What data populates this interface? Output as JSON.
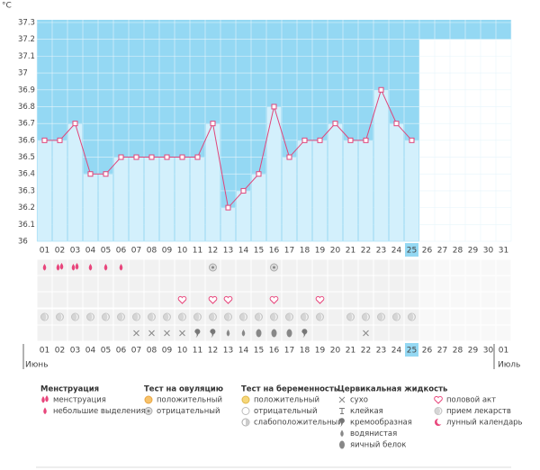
{
  "chart_data": {
    "type": "line",
    "unit": "°C",
    "categories": [
      "01",
      "02",
      "03",
      "04",
      "05",
      "06",
      "07",
      "08",
      "09",
      "10",
      "11",
      "12",
      "13",
      "14",
      "15",
      "16",
      "17",
      "18",
      "19",
      "20",
      "21",
      "22",
      "23",
      "24",
      "25",
      "26",
      "27",
      "28",
      "29",
      "30",
      "31"
    ],
    "values": [
      36.6,
      36.6,
      36.7,
      36.4,
      36.4,
      36.5,
      36.5,
      36.5,
      36.5,
      36.5,
      36.5,
      36.7,
      36.2,
      36.3,
      36.4,
      36.8,
      36.5,
      36.6,
      36.6,
      36.7,
      36.6,
      36.6,
      36.9,
      36.7,
      36.6,
      null,
      null,
      null,
      null,
      null,
      null
    ],
    "color": "#e0457a",
    "highlight_index": 24,
    "ylim": [
      36,
      37.3
    ],
    "yticks": [
      36,
      36.1,
      36.2,
      36.3,
      36.4,
      36.5,
      36.6,
      36.7,
      36.8,
      36.9,
      37,
      37.1,
      37.2,
      37.3
    ],
    "bottom_days": [
      "01",
      "02",
      "03",
      "04",
      "05",
      "06",
      "07",
      "08",
      "09",
      "10",
      "11",
      "12",
      "13",
      "14",
      "15",
      "16",
      "17",
      "18",
      "19",
      "20",
      "21",
      "22",
      "23",
      "24",
      "25",
      "26",
      "27",
      "28",
      "29",
      "30",
      "01"
    ],
    "weekend": [
      false,
      true,
      true,
      false,
      false,
      false,
      false,
      false,
      true,
      true,
      false,
      false,
      false,
      false,
      false,
      true,
      true,
      false,
      false,
      false,
      false,
      false,
      true,
      true,
      false,
      false,
      false,
      false,
      false,
      true,
      true
    ],
    "month_left": "Июнь",
    "month_right": "Июль"
  },
  "tracks": [
    {
      "group": 0,
      "values": [
        1,
        0,
        0,
        1,
        1,
        1,
        null,
        null,
        null,
        null,
        null,
        null,
        null,
        null,
        null,
        null,
        null,
        null,
        null,
        null,
        null,
        null,
        null,
        null,
        null,
        null,
        null,
        null,
        null,
        null,
        null
      ]
    },
    {
      "group": 1,
      "values": [
        null,
        null,
        null,
        null,
        null,
        null,
        null,
        null,
        null,
        null,
        null,
        1,
        null,
        null,
        null,
        1,
        null,
        null,
        null,
        null,
        null,
        null,
        null,
        null,
        null,
        null,
        null,
        null,
        null,
        null,
        null
      ]
    },
    {
      "group": 4,
      "values": [
        null,
        null,
        null,
        null,
        null,
        null,
        null,
        null,
        null,
        0,
        null,
        0,
        0,
        null,
        null,
        0,
        null,
        null,
        0,
        null,
        null,
        null,
        null,
        null,
        null,
        null,
        null,
        null,
        null,
        null,
        null
      ]
    },
    {
      "group": 4,
      "values": [
        1,
        1,
        1,
        1,
        1,
        1,
        1,
        1,
        1,
        1,
        1,
        1,
        1,
        1,
        1,
        1,
        1,
        1,
        1,
        null,
        1,
        1,
        1,
        1,
        1,
        null,
        null,
        null,
        null,
        null,
        null
      ]
    },
    {
      "group": 3,
      "values": [
        null,
        null,
        null,
        null,
        null,
        null,
        0,
        0,
        0,
        0,
        2,
        2,
        3,
        3,
        4,
        4,
        4,
        2,
        null,
        null,
        null,
        0,
        null,
        null,
        null,
        null,
        null,
        null,
        null,
        null,
        null
      ]
    }
  ],
  "legend": [
    {
      "title": "Менструация",
      "items": [
        "менструация",
        "небольшие выделения"
      ]
    },
    {
      "title": "Тест на овуляцию",
      "items": [
        "положительный",
        "отрицательный"
      ]
    },
    {
      "title": "Тест на беременность",
      "items": [
        "положительный",
        "отрицательный",
        "слабоположительный"
      ]
    },
    {
      "title": "Цервикальная жидкость",
      "items": [
        "сухо",
        "клейкая",
        "кремообразная",
        "водянистая",
        "яичный белок"
      ]
    },
    {
      "items": [
        "половой акт",
        "прием лекарств",
        "лунный календарь"
      ]
    }
  ]
}
